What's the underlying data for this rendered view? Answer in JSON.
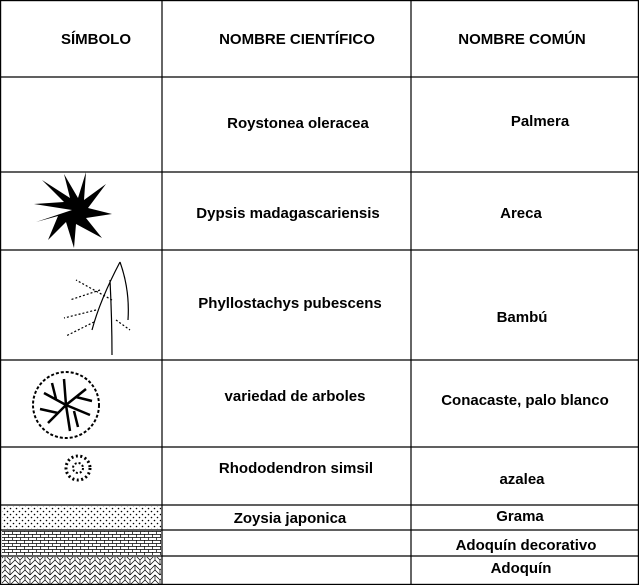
{
  "header": {
    "symbol": "SÍMBOLO",
    "scientific": "NOMBRE CIENTÍFICO",
    "common": "NOMBRE COMÚN"
  },
  "rows": [
    {
      "scientific": "Roystonea oleracea",
      "common": "Palmera"
    },
    {
      "scientific": "Dypsis madagascariensis",
      "common": "Areca"
    },
    {
      "scientific": "Phyllostachys pubescens",
      "common": "Bambú"
    },
    {
      "scientific": "variedad de arboles",
      "common": "Conacaste, palo blanco"
    },
    {
      "scientific": "Rhododendron simsil",
      "common": "azalea"
    },
    {
      "scientific": "Zoysia japonica",
      "common": "Grama"
    },
    {
      "common": "Adoquín decorativo"
    },
    {
      "common": "Adoquín"
    }
  ]
}
